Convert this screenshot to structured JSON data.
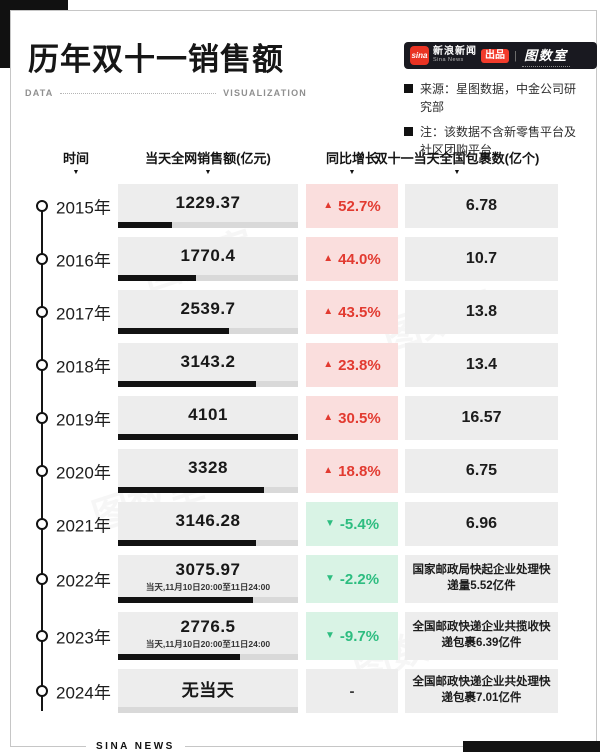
{
  "header": {
    "title": "历年双十一销售额",
    "data_label": "DATA",
    "visualization_label": "VISUALIZATION",
    "brand": {
      "sina_icon_text": "sina",
      "name_cn": "新浪新闻",
      "name_en": "Sina News",
      "badge": "出品",
      "separator": "|",
      "studio": "图数室"
    },
    "notes": [
      "来源：星图数据，中金公司研究部",
      "注：该数据不含新零售平台及社区团购平台"
    ]
  },
  "columns": {
    "time": "时间",
    "sales": "当天全网销售额(亿元)",
    "yoy": "同比增长",
    "packages": "双十一当天全国包裹数(亿个)",
    "caret": "▼"
  },
  "rows": [
    {
      "year": "2015年",
      "sales": "1229.37",
      "sales_note": "",
      "bar_pct": 30.0,
      "yoy": "52.7%",
      "direction": "up",
      "packages": "6.78"
    },
    {
      "year": "2016年",
      "sales": "1770.4",
      "sales_note": "",
      "bar_pct": 43.2,
      "yoy": "44.0%",
      "direction": "up",
      "packages": "10.7"
    },
    {
      "year": "2017年",
      "sales": "2539.7",
      "sales_note": "",
      "bar_pct": 61.9,
      "yoy": "43.5%",
      "direction": "up",
      "packages": "13.8"
    },
    {
      "year": "2018年",
      "sales": "3143.2",
      "sales_note": "",
      "bar_pct": 76.6,
      "yoy": "23.8%",
      "direction": "up",
      "packages": "13.4"
    },
    {
      "year": "2019年",
      "sales": "4101",
      "sales_note": "",
      "bar_pct": 100,
      "yoy": "30.5%",
      "direction": "up",
      "packages": "16.57"
    },
    {
      "year": "2020年",
      "sales": "3328",
      "sales_note": "",
      "bar_pct": 81.2,
      "yoy": "18.8%",
      "direction": "up",
      "packages": "6.75"
    },
    {
      "year": "2021年",
      "sales": "3146.28",
      "sales_note": "",
      "bar_pct": 76.7,
      "yoy": "-5.4%",
      "direction": "down",
      "packages": "6.96"
    },
    {
      "year": "2022年",
      "sales": "3075.97",
      "sales_note": "当天,11月10日20:00至11日24:00",
      "bar_pct": 75.0,
      "yoy": "-2.2%",
      "direction": "down",
      "packages": "国家邮政局快起企业处理快递量5.52亿件"
    },
    {
      "year": "2023年",
      "sales": "2776.5",
      "sales_note": "当天,11月10日20:00至11日24:00",
      "bar_pct": 67.7,
      "yoy": "-9.7%",
      "direction": "down",
      "packages": "全国邮政快递企业共揽收快递包裹6.39亿件"
    },
    {
      "year": "2024年",
      "sales": "无当天",
      "sales_note": "",
      "bar_pct": 0,
      "yoy": "-",
      "direction": "none",
      "packages": "全国邮政快递企业共处理快递包裹7.01亿件"
    }
  ],
  "footer": {
    "label": "SINA NEWS"
  },
  "watermark": "图数室",
  "colors": {
    "up_bg": "#fadedd",
    "up_text": "#e23a30",
    "down_bg": "#d9f3e5",
    "down_text": "#2dbd80",
    "cell_bg": "#ededed",
    "bar_fill": "#121212",
    "bar_track": "#d9d9d9",
    "brand_bg": "#191920",
    "brand_red": "#f23b2b"
  },
  "chart_data": {
    "type": "table",
    "title": "历年双十一销售额",
    "categories": [
      "2015",
      "2016",
      "2017",
      "2018",
      "2019",
      "2020",
      "2021",
      "2022",
      "2023",
      "2024"
    ],
    "series": [
      {
        "name": "当天全网销售额(亿元)",
        "values": [
          1229.37,
          1770.4,
          2539.7,
          3143.2,
          4101,
          3328,
          3146.28,
          3075.97,
          2776.5,
          null
        ]
      },
      {
        "name": "同比增长(%)",
        "values": [
          52.7,
          44.0,
          43.5,
          23.8,
          30.5,
          18.8,
          -5.4,
          -2.2,
          -9.7,
          null
        ]
      },
      {
        "name": "双十一当天全国包裹数(亿个)",
        "values": [
          6.78,
          10.7,
          13.8,
          13.4,
          16.57,
          6.75,
          6.96,
          null,
          null,
          null
        ]
      }
    ],
    "bar_scale_max": 4101,
    "notes": "2022: 国家邮政局快起企业处理快递量5.52亿件; 2023: 全国邮政快递企业共揽收快递包裹6.39亿件; 2024: 无当天, 全国邮政快递企业共处理快递包裹7.01亿件"
  }
}
